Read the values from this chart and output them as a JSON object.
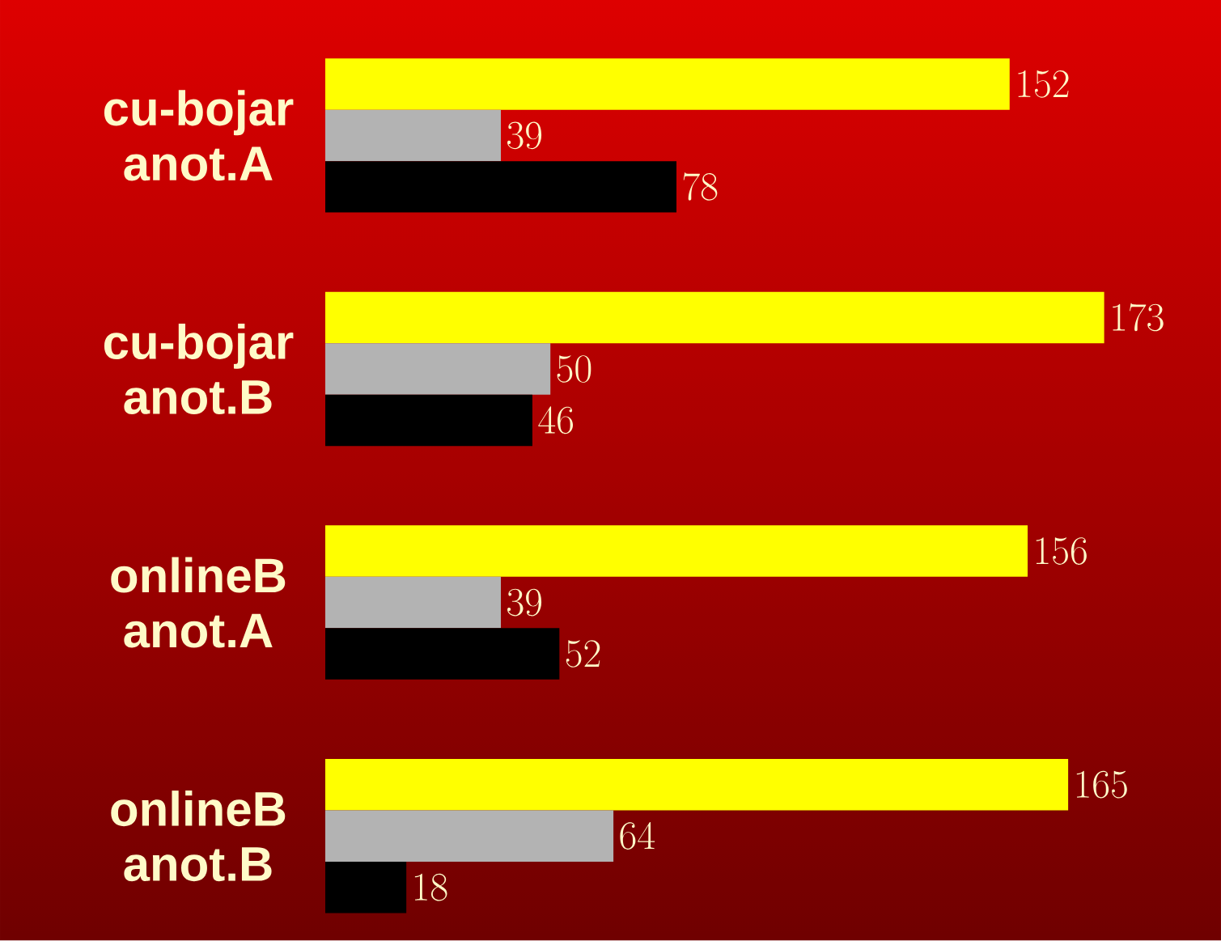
{
  "chart_data": {
    "type": "bar",
    "orientation": "horizontal",
    "categories": [
      "cu-bojar anot.A",
      "cu-bojar anot.B",
      "onlineB anot.A",
      "onlineB anot.B"
    ],
    "series": [
      {
        "color": "#ffff00",
        "values": [
          152,
          173,
          156,
          165
        ]
      },
      {
        "color": "#b3b3b3",
        "values": [
          39,
          50,
          39,
          64
        ]
      },
      {
        "color": "#000000",
        "values": [
          78,
          46,
          52,
          18
        ]
      }
    ],
    "data_labels": true
  }
}
